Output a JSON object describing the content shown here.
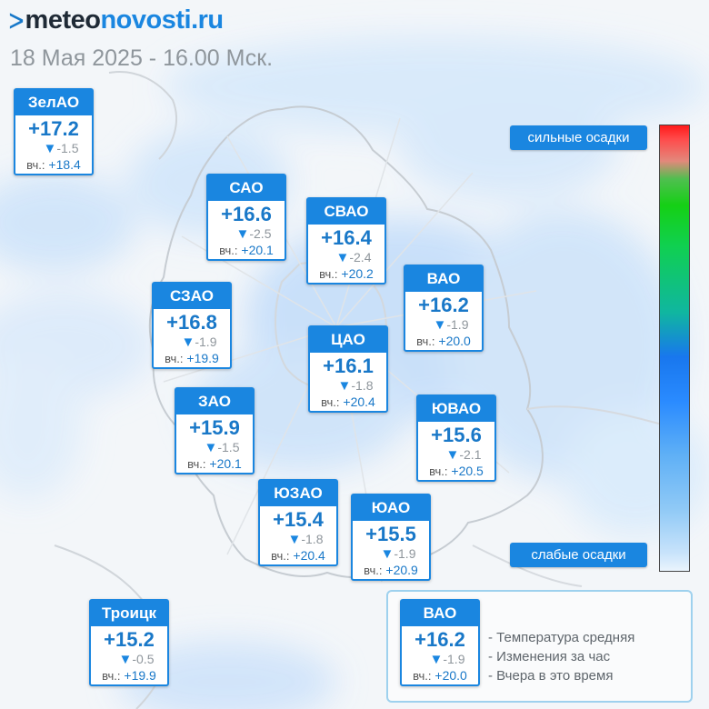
{
  "header": {
    "logo_prefix": "meteo",
    "logo_suffix": "novosti.ru",
    "datetime": "18 Мая 2025 - 16.00 Мск."
  },
  "yesterday_prefix": "вч.:",
  "districts": [
    {
      "name": "ЗелАО",
      "temp": "+17.2",
      "change": "-1.5",
      "yesterday": "+18.4"
    },
    {
      "name": "САО",
      "temp": "+16.6",
      "change": "-2.5",
      "yesterday": "+20.1"
    },
    {
      "name": "СВАО",
      "temp": "+16.4",
      "change": "-2.4",
      "yesterday": "+20.2"
    },
    {
      "name": "ВАО",
      "temp": "+16.2",
      "change": "-1.9",
      "yesterday": "+20.0"
    },
    {
      "name": "СЗАО",
      "temp": "+16.8",
      "change": "-1.9",
      "yesterday": "+19.9"
    },
    {
      "name": "ЦАО",
      "temp": "+16.1",
      "change": "-1.8",
      "yesterday": "+20.4"
    },
    {
      "name": "ЗАО",
      "temp": "+15.9",
      "change": "-1.5",
      "yesterday": "+20.1"
    },
    {
      "name": "ЮВАО",
      "temp": "+15.6",
      "change": "-2.1",
      "yesterday": "+20.5"
    },
    {
      "name": "ЮЗАО",
      "temp": "+15.4",
      "change": "-1.8",
      "yesterday": "+20.4"
    },
    {
      "name": "ЮАО",
      "temp": "+15.5",
      "change": "-1.9",
      "yesterday": "+20.9"
    },
    {
      "name": "Троицк",
      "temp": "+15.2",
      "change": "-0.5",
      "yesterday": "+19.9"
    }
  ],
  "legend": {
    "example": {
      "name": "ВАО",
      "temp": "+16.2",
      "change": "-1.9",
      "yesterday": "+20.0"
    },
    "lines": [
      "- Температура средняя",
      "- Изменения за час",
      "- Вчера в это время"
    ]
  },
  "precip_scale": {
    "top_label": "сильные осадки",
    "bottom_label": "слабые осадки",
    "colors": [
      "#ff1a1a",
      "#15d015",
      "#1877ee",
      "#8fc9f6",
      "#eaf4fd"
    ]
  }
}
